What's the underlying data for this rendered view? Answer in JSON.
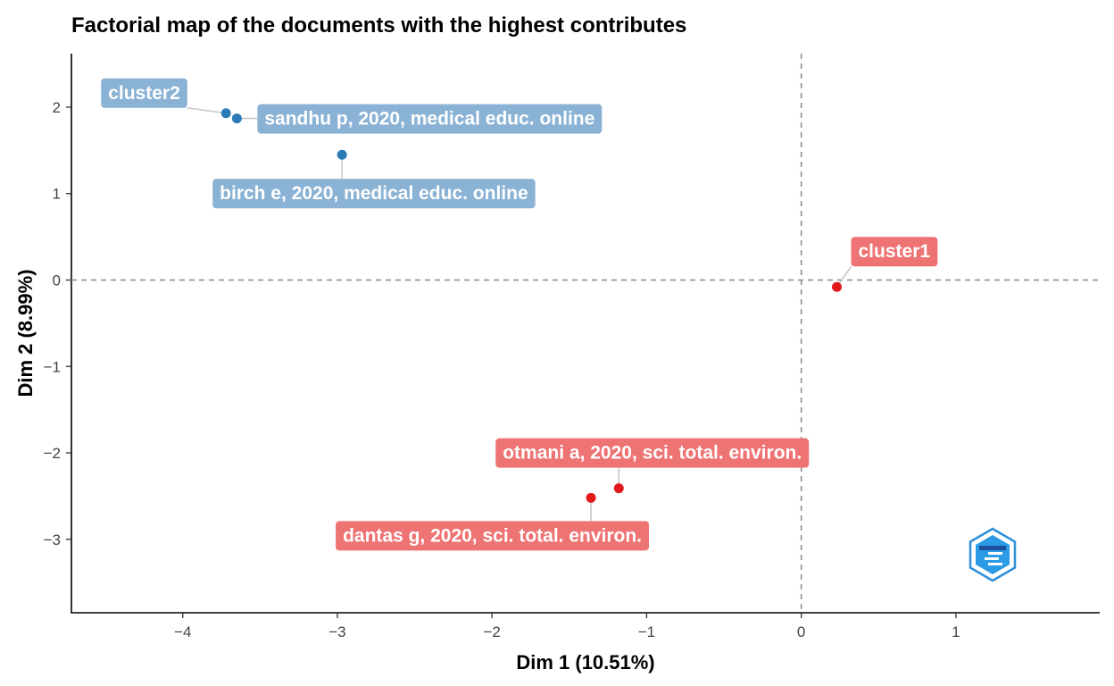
{
  "chart_data": {
    "type": "scatter",
    "title": "Factorial map of the documents with the highest contributes",
    "xlabel": "Dim 1 (10.51%)",
    "ylabel": "Dim 2 (8.99%)",
    "xlim": [
      -4.72,
      1.93
    ],
    "ylim": [
      -3.85,
      2.62
    ],
    "xticks": [
      -4,
      -3,
      -2,
      -1,
      0,
      1
    ],
    "yticks": [
      2,
      1,
      0,
      -1,
      -2,
      -3
    ],
    "reference_lines": {
      "x": 0,
      "y": 0,
      "style": "dashed"
    },
    "grid": false,
    "colors": {
      "cluster1_point": "#e31a1c",
      "cluster1_label": "#ee7373",
      "cluster2_point": "#2c7bb6",
      "cluster2_label": "#8ab2d4",
      "reference_line": "#888888",
      "connector": "#c8c8c8"
    },
    "series": [
      {
        "name": "cluster1",
        "points": [
          {
            "label": "cluster1",
            "x": 0.23,
            "y": -0.08
          },
          {
            "label": "otmani a, 2020, sci. total. environ.",
            "x": -1.18,
            "y": -2.41
          },
          {
            "label": "dantas g, 2020, sci. total. environ.",
            "x": -1.36,
            "y": -2.52
          }
        ]
      },
      {
        "name": "cluster2",
        "points": [
          {
            "label": "cluster2",
            "x": -3.72,
            "y": 1.93
          },
          {
            "label": "sandhu p, 2020, medical educ. online",
            "x": -3.65,
            "y": 1.87
          },
          {
            "label": "birch e, 2020, medical educ. online",
            "x": -2.97,
            "y": 1.45
          }
        ]
      }
    ],
    "logo": "biblioshiny-hexagon-logo"
  }
}
